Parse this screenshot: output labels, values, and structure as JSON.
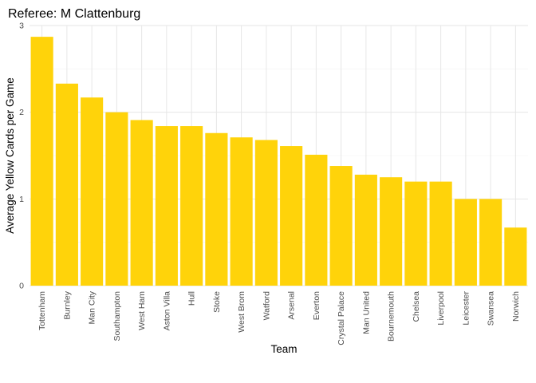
{
  "chart_data": {
    "type": "bar",
    "title": "Referee: M Clattenburg",
    "xlabel": "Team",
    "ylabel": "Average Yellow Cards per Game",
    "categories": [
      "Tottenham",
      "Burnley",
      "Man City",
      "Southampton",
      "West Ham",
      "Aston Villa",
      "Hull",
      "Stoke",
      "West Brom",
      "Watford",
      "Arsenal",
      "Everton",
      "Crystal Palace",
      "Man United",
      "Bournemouth",
      "Chelsea",
      "Liverpool",
      "Leicester",
      "Swansea",
      "Norwich"
    ],
    "values": [
      2.87,
      2.33,
      2.17,
      2.0,
      1.91,
      1.84,
      1.84,
      1.76,
      1.71,
      1.68,
      1.61,
      1.51,
      1.38,
      1.28,
      1.25,
      1.2,
      1.2,
      1.0,
      1.0,
      0.67
    ],
    "ylim": [
      0,
      3
    ],
    "yticks": [
      "0",
      "1",
      "2",
      "3"
    ],
    "grid": true,
    "legend": "none",
    "bar_color": "#FFD30A"
  }
}
